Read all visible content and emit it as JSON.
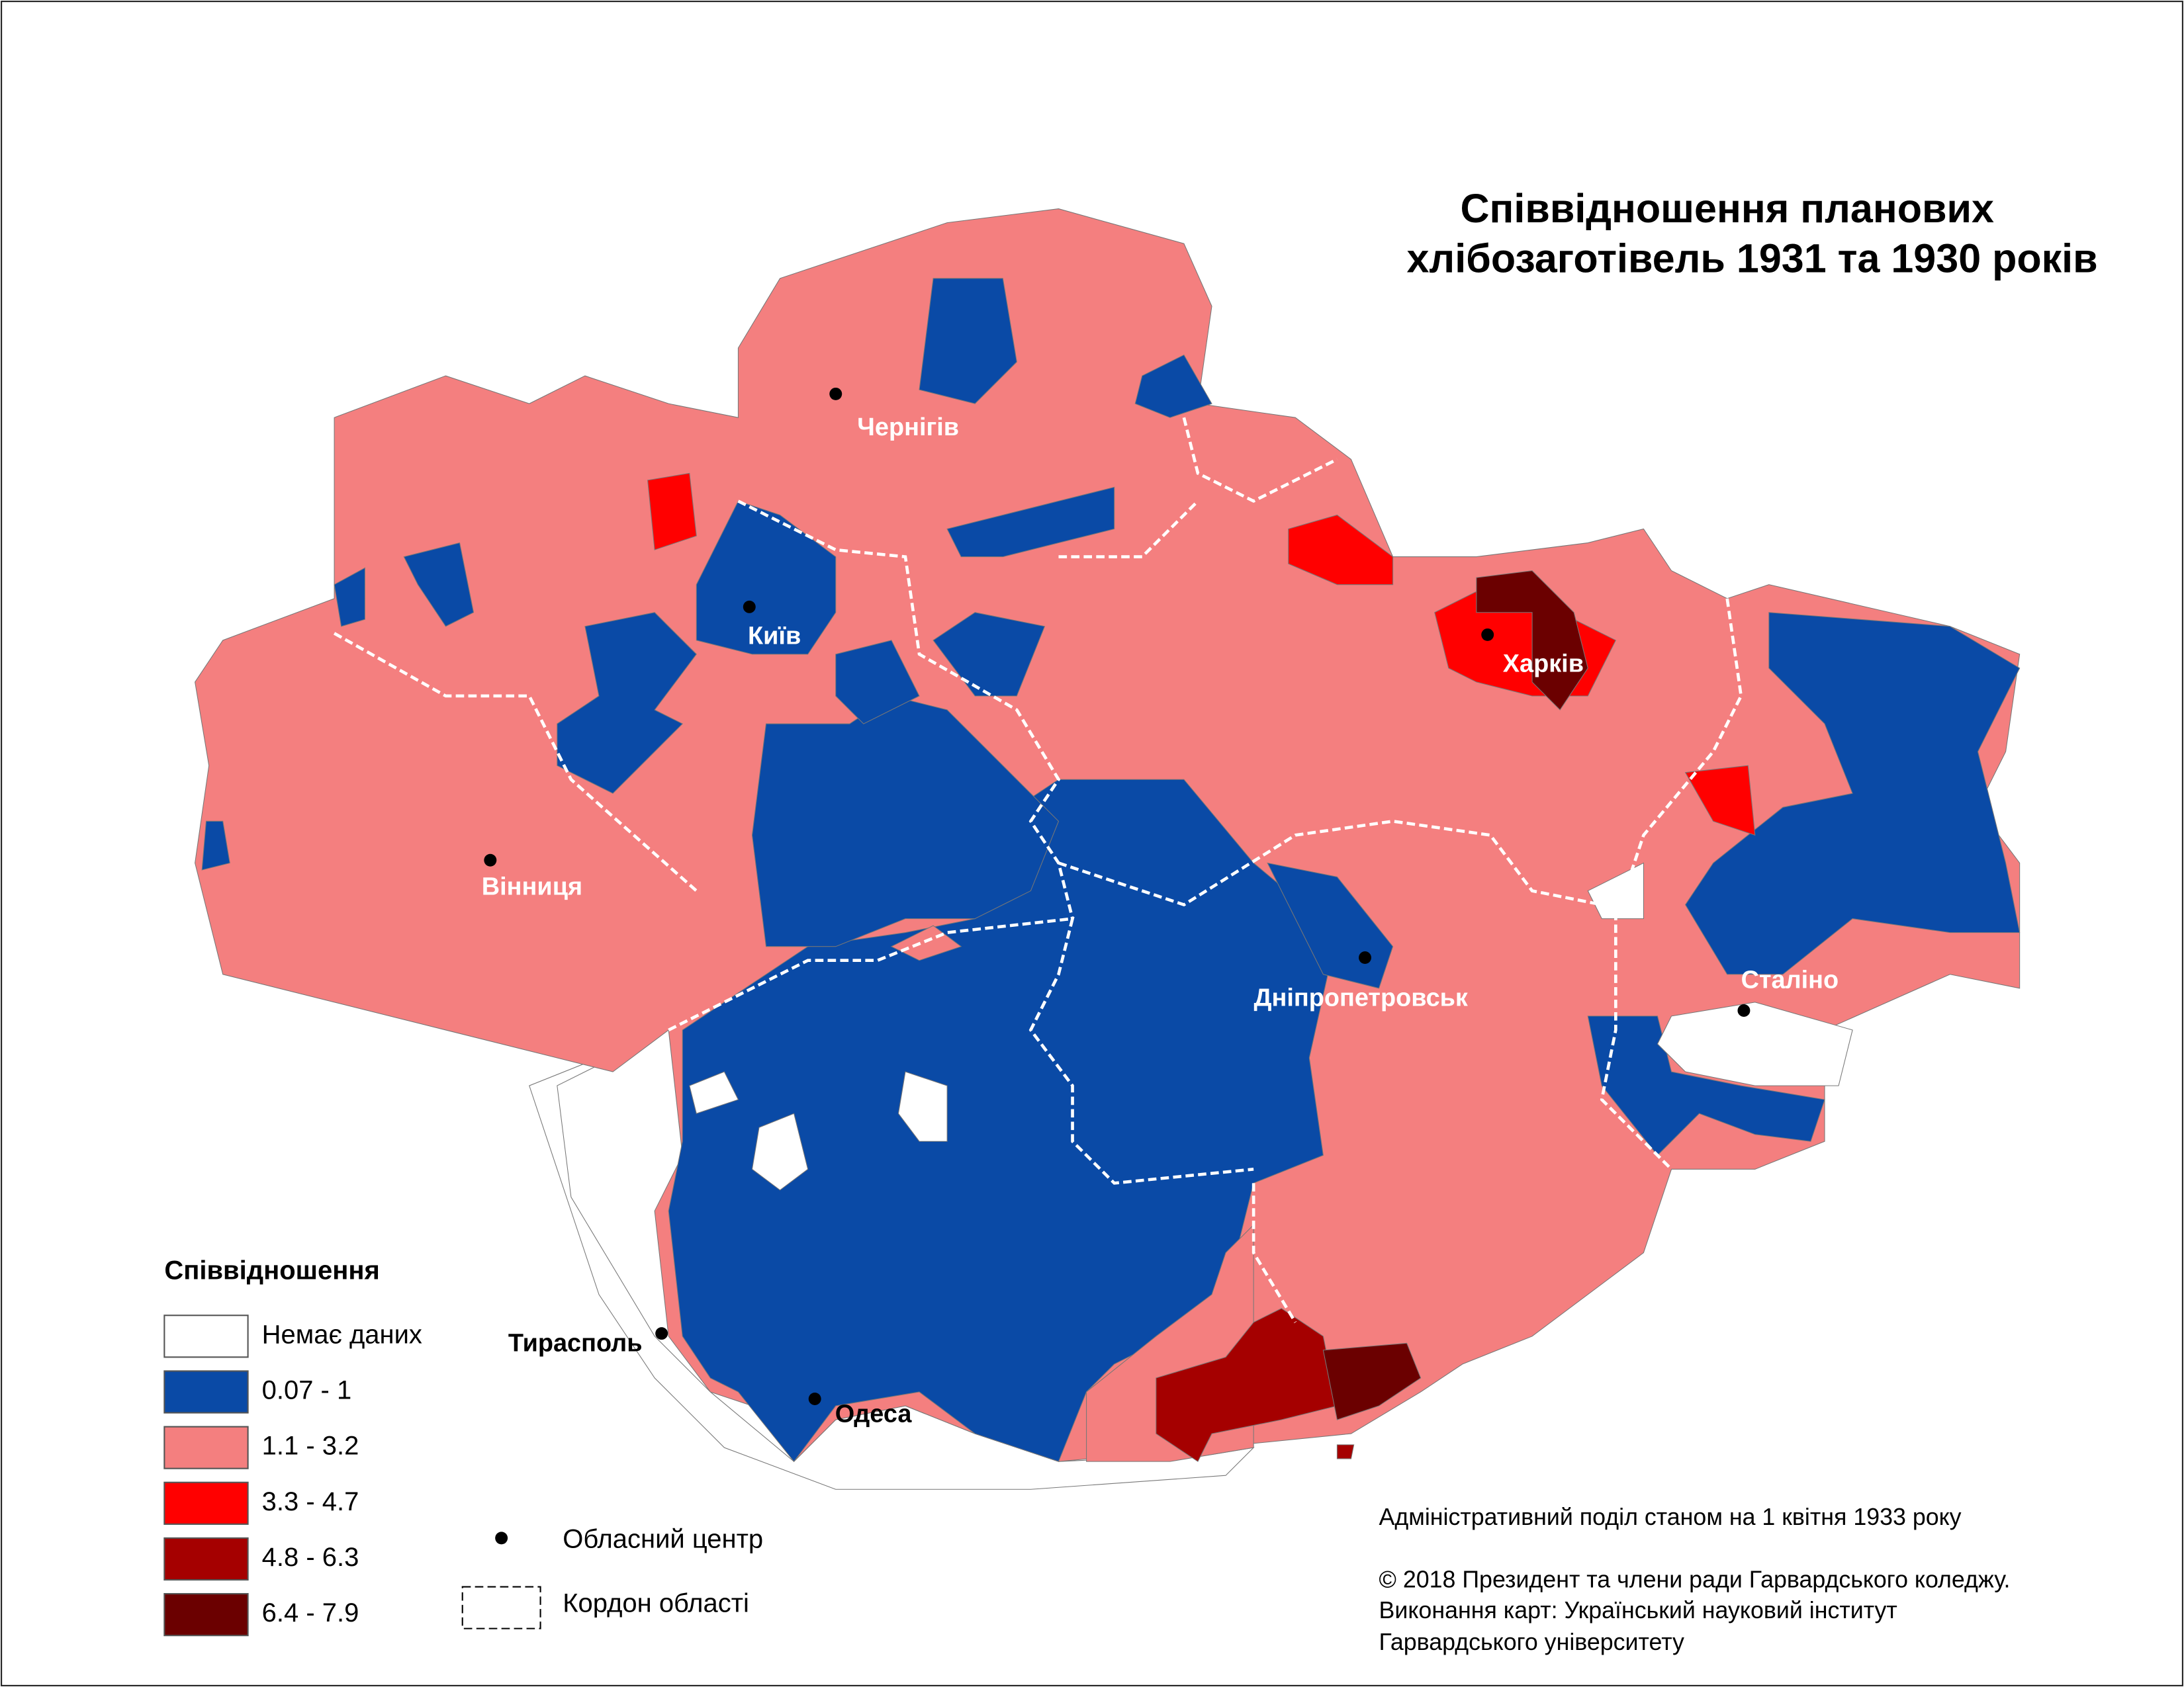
{
  "title": [
    "Співвідношення планових",
    "хлібозаготівель 1931 та 1930 років"
  ],
  "legend": {
    "title": "Співвідношення",
    "items": [
      {
        "label": "Немає даних",
        "color": "#ffffff"
      },
      {
        "label": "0.07 - 1",
        "color": "#0a4aa6"
      },
      {
        "label": "1.1 - 3.2",
        "color": "#f47f7f"
      },
      {
        "label": "3.3 - 4.7",
        "color": "#ff0000"
      },
      {
        "label": "4.8 - 6.3",
        "color": "#a50000"
      },
      {
        "label": "6.4 - 7.9",
        "color": "#6b0000"
      }
    ],
    "symbols": [
      "Обласний центр",
      "Кордон області"
    ]
  },
  "cities": [
    "Чернігів",
    "Київ",
    "Харків",
    "Вінниця",
    "Дніпропетровськ",
    "Сталіно",
    "Тирасполь",
    "Одеса"
  ],
  "notes": [
    "Адміністративний поділ станом на 1 квітня 1933 року",
    "© 2018 Президент та члени ради Гарвардського коледжу.",
    "Виконання карт: Український науковий інститут",
    "Гарвардського університету"
  ]
}
